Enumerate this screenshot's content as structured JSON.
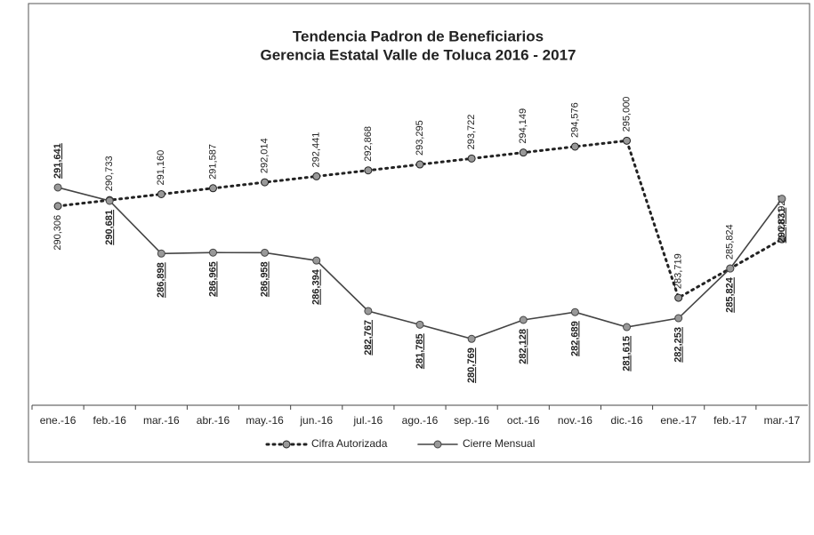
{
  "chart_data": {
    "type": "line",
    "title": "Tendencia Padron de Beneficiarios",
    "subtitle": "Gerencia Estatal Valle de Toluca 2016 - 2017",
    "categories": [
      "ene.-16",
      "feb.-16",
      "mar.-16",
      "abr.-16",
      "may.-16",
      "jun.-16",
      "jul.-16",
      "ago.-16",
      "sep.-16",
      "oct.-16",
      "nov.-16",
      "dic.-16",
      "ene.-17",
      "feb.-17",
      "mar.-17"
    ],
    "series": [
      {
        "name": "Cifra Autorizada",
        "color": "#222222",
        "style": "dotted",
        "values": [
          290306,
          290733,
          291160,
          291587,
          292014,
          292441,
          292868,
          293295,
          293722,
          294149,
          294576,
          295000,
          283719,
          285824,
          287927
        ],
        "value_labels": [
          "290,306",
          "290,733",
          "291,160",
          "291,587",
          "292,014",
          "292,441",
          "292,868",
          "293,295",
          "293,722",
          "294,149",
          "294,576",
          "295,000",
          "283,719",
          "285,824",
          "287,927"
        ]
      },
      {
        "name": "Cierre Mensual",
        "color": "#444444",
        "style": "solid",
        "values": [
          291641,
          290681,
          286898,
          286965,
          286958,
          286394,
          282767,
          281785,
          280769,
          282128,
          282689,
          281615,
          282253,
          285824,
          290831
        ],
        "value_labels": [
          "291,641",
          "290,681",
          "286,898",
          "286,965",
          "286,958",
          "286,394",
          "282,767",
          "281,785",
          "280,769",
          "282,128",
          "282,689",
          "281,615",
          "282,253",
          "285,824",
          "290,831"
        ]
      }
    ],
    "ylim": [
      276000,
      300000
    ]
  }
}
